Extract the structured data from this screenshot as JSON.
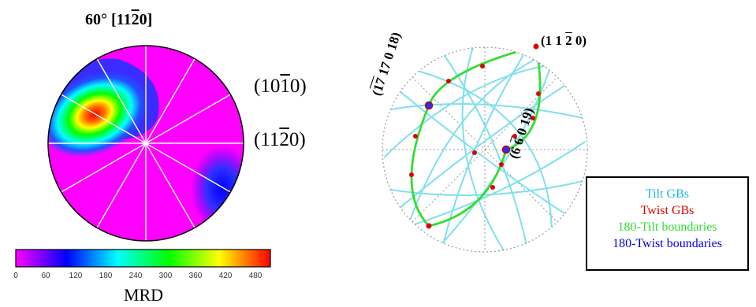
{
  "left_panel": {
    "title_prefix": "60° [11",
    "title_bar": "2",
    "title_suffix": "0]",
    "plane_a": {
      "pre": "(10",
      "bar": "1",
      "post": "0)"
    },
    "plane_b": {
      "pre": "(11",
      "bar": "2",
      "post": "0)"
    }
  },
  "colorbar": {
    "label": "MRD",
    "ticks": [
      "0",
      "60",
      "120",
      "180",
      "240",
      "300",
      "360",
      "420",
      "480"
    ],
    "colors": [
      "#ff00ff",
      "#0000ff",
      "#00ffff",
      "#00ff00",
      "#ffff00",
      "#ff0000"
    ]
  },
  "right_panel": {
    "pole_top": {
      "pre": "(1 1 ",
      "bar": "2",
      "post": " 0)"
    },
    "pole_left": {
      "pre": "(",
      "bar": "17",
      "post": " 17 0 18)"
    },
    "pole_right": {
      "pre": "(6 ",
      "bar": "6",
      "post": " 0 19)"
    }
  },
  "legend": {
    "items": [
      {
        "label": "Tilt GBs",
        "color": "#21b5e8"
      },
      {
        "label": "Twist GBs",
        "color": "#e00000"
      },
      {
        "label": "180-Tilt boundaries",
        "color": "#33dd33"
      },
      {
        "label": "180-Twist boundaries",
        "color": "#0000dd"
      }
    ]
  }
}
